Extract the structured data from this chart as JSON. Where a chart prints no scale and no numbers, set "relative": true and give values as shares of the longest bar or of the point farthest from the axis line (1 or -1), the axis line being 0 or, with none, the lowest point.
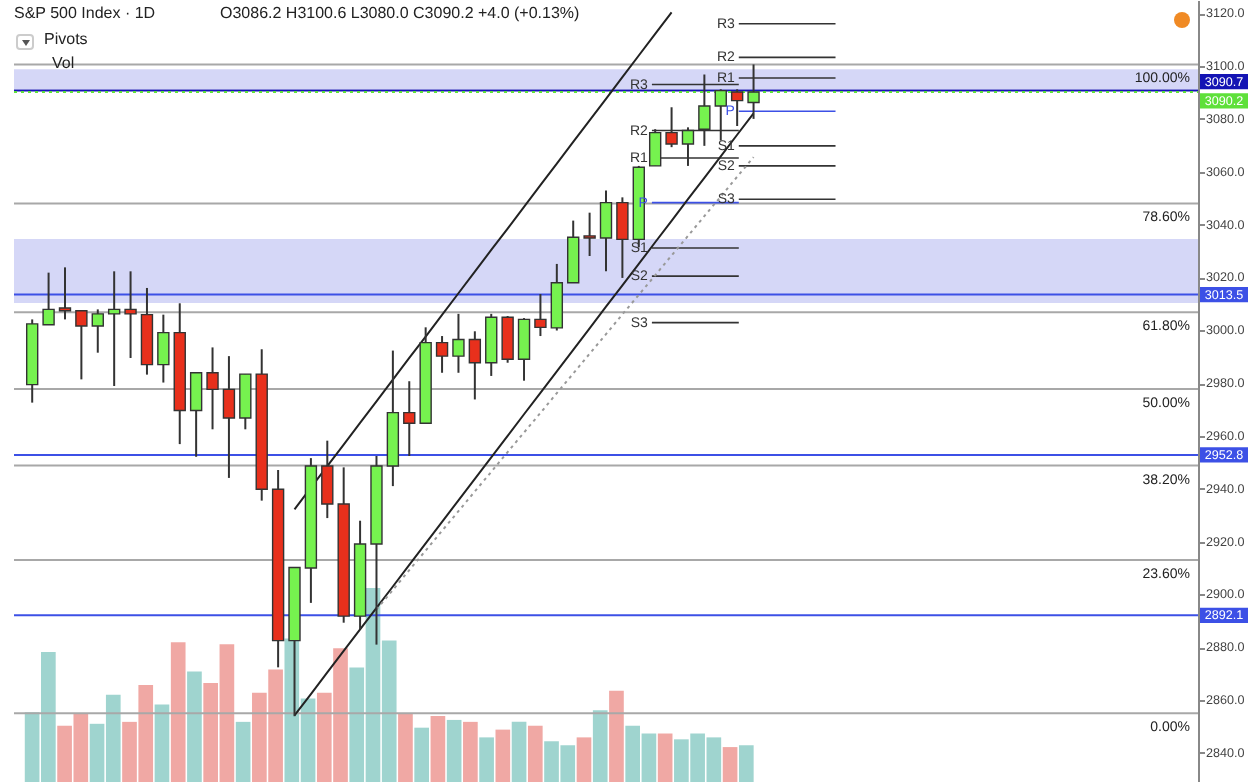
{
  "chart_data": [
    {
      "type": "candlestick",
      "title": "S&P 500 Index · 1D",
      "subtitle": "O3086.2 H3100.6 L3080.0 C3090.2 +4.0 (+0.13%)",
      "categories": [
        null,
        null,
        null,
        null,
        null,
        null,
        null,
        null,
        null,
        null,
        null,
        null,
        null,
        null,
        null,
        null,
        null,
        null,
        null,
        null,
        null,
        null,
        null,
        null,
        null,
        null,
        null,
        null,
        null,
        null,
        null,
        null,
        null,
        null,
        null,
        null,
        null,
        null,
        null,
        null,
        null,
        null,
        null,
        null,
        null,
        null,
        null,
        null,
        null,
        null,
        null,
        null,
        null,
        null,
        null,
        null,
        null,
        null,
        null,
        null,
        null,
        null,
        null,
        null,
        null,
        null,
        null,
        null,
        null,
        null,
        null
      ],
      "ohlc": [
        [
          2979.4,
          3004.1,
          2972.6,
          3002.4
        ],
        [
          3002.1,
          3021.8,
          3002.1,
          3007.9
        ],
        [
          3008.4,
          3023.8,
          3004.1,
          3007.4
        ],
        [
          3007.4,
          3007.4,
          2981.4,
          3001.6
        ],
        [
          3001.6,
          3007.9,
          2991.5,
          3006.2
        ],
        [
          3006.2,
          3022.3,
          2978.9,
          3007.9
        ],
        [
          3007.9,
          3022.3,
          2989.5,
          3006.2
        ],
        [
          3005.9,
          3016.0,
          2983.2,
          2987.0
        ],
        [
          2987.0,
          3005.9,
          2980.2,
          2999.1
        ],
        [
          2999.1,
          3010.2,
          2956.9,
          2969.6
        ],
        [
          2969.6,
          2983.9,
          2952.1,
          2983.9
        ],
        [
          2983.9,
          2993.5,
          2962.5,
          2977.6
        ],
        [
          2977.6,
          2990.2,
          2944.1,
          2966.8
        ],
        [
          2966.8,
          2983.4,
          2962.5,
          2983.4
        ],
        [
          2983.4,
          2992.8,
          2935.5,
          2939.8
        ],
        [
          2939.8,
          2947.1,
          2872.4,
          2882.5
        ],
        [
          2882.5,
          2910.2,
          2853.9,
          2910.2
        ],
        [
          2910.0,
          2951.6,
          2896.8,
          2948.6
        ],
        [
          2948.6,
          2958.2,
          2928.9,
          2934.2
        ],
        [
          2934.2,
          2948.1,
          2889.3,
          2891.8
        ],
        [
          2891.8,
          2927.9,
          2886.8,
          2919.1
        ],
        [
          2919.1,
          2952.4,
          2881.0,
          2948.6
        ],
        [
          2948.6,
          2992.3,
          2941.0,
          2968.8
        ],
        [
          2968.8,
          2980.7,
          2952.4,
          2964.8
        ],
        [
          2964.8,
          3001.1,
          2964.8,
          2995.3
        ],
        [
          2995.3,
          2997.8,
          2983.9,
          2990.2
        ],
        [
          2990.2,
          3006.2,
          2983.9,
          2996.5
        ],
        [
          2996.5,
          2999.6,
          2973.8,
          2987.7
        ],
        [
          2987.7,
          3006.2,
          2982.7,
          3004.9
        ],
        [
          3004.9,
          3005.4,
          2987.7,
          2989.0
        ],
        [
          2989.0,
          3004.6,
          2980.9,
          3004.1
        ],
        [
          3004.1,
          3013.7,
          2997.8,
          3001.1
        ],
        [
          3000.9,
          3025.1,
          2999.9,
          3018.0
        ],
        [
          3018.0,
          3041.5,
          3018.0,
          3035.2
        ],
        [
          3035.7,
          3044.5,
          3028.1,
          3034.9
        ],
        [
          3034.9,
          3052.9,
          3022.3,
          3048.3
        ],
        [
          3048.3,
          3050.3,
          3019.8,
          3034.4
        ],
        [
          3034.4,
          3062.2,
          3031.4,
          3061.7
        ],
        [
          3062.2,
          3076.1,
          3062.2,
          3074.8
        ],
        [
          3074.8,
          3084.4,
          3069.3,
          3070.5
        ],
        [
          3070.5,
          3076.8,
          3062.2,
          3075.6
        ],
        [
          3076.1,
          3096.8,
          3069.8,
          3084.9
        ],
        [
          3084.9,
          3091.2,
          3071.8,
          3090.7
        ],
        [
          3090.2,
          3091.2,
          3077.3,
          3086.9
        ],
        [
          3086.2,
          3100.6,
          3080.0,
          3090.2
        ],
        null,
        null,
        null,
        null,
        null,
        null,
        null,
        null,
        null,
        null,
        null,
        null,
        null,
        null,
        null,
        null,
        null,
        null,
        null,
        null,
        null,
        null,
        null,
        null,
        null,
        null
      ],
      "colors": [
        "#76f24f",
        "#76f24f",
        "#e8301c",
        "#e8301c",
        "#76f24f",
        "#76f24f",
        "#e8301c",
        "#e8301c",
        "#76f24f",
        "#e8301c",
        "#76f24f",
        "#e8301c",
        "#e8301c",
        "#76f24f",
        "#e8301c",
        "#e8301c",
        "#76f24f",
        "#76f24f",
        "#e8301c",
        "#e8301c",
        "#76f24f",
        "#76f24f",
        "#76f24f",
        "#e8301c",
        "#76f24f",
        "#e8301c",
        "#76f24f",
        "#e8301c",
        "#76f24f",
        "#e8301c",
        "#76f24f",
        "#e8301c",
        "#76f24f",
        "#76f24f",
        "#e8301c",
        "#76f24f",
        "#e8301c",
        "#76f24f",
        "#76f24f",
        "#e8301c",
        "#76f24f",
        "#76f24f",
        "#76f24f",
        "#e8301c",
        "#76f24f",
        null,
        null,
        null,
        null,
        null,
        null,
        null,
        null,
        null,
        null,
        null,
        null,
        null,
        null,
        null,
        null,
        null,
        null,
        null,
        null,
        null,
        null,
        null,
        null,
        null,
        null
      ],
      "series": [
        {
          "type": "line",
          "color": "#222222",
          "line_style": "solid",
          "values": [
            null,
            null,
            null,
            null,
            null,
            null,
            null,
            null,
            null,
            null,
            null,
            null,
            null,
            null,
            null,
            null,
            2932.2,
            2940.4,
            2948.6,
            2956.7,
            2964.9,
            2973.1,
            2981.3,
            2989.5,
            2997.6,
            3005.8,
            3014.0,
            3022.2,
            3030.4,
            3038.5,
            3046.7,
            3054.9,
            3063.1,
            3071.3,
            3079.4,
            3087.6,
            3095.8,
            3104.0,
            3112.2,
            3120.3,
            null,
            null,
            null,
            null,
            null,
            null,
            null,
            null,
            null,
            null,
            null,
            null,
            null,
            null,
            null,
            null,
            null,
            null,
            null,
            null,
            null,
            null,
            null,
            null,
            null,
            null,
            null,
            null,
            null,
            null,
            null
          ]
        },
        {
          "type": "line",
          "color": "#222222",
          "line_style": "solid",
          "values": [
            null,
            null,
            null,
            null,
            null,
            null,
            null,
            null,
            null,
            null,
            null,
            null,
            null,
            null,
            null,
            null,
            2854.2,
            2862.3,
            2870.5,
            2878.6,
            2886.8,
            2894.9,
            2903.0,
            2911.2,
            2919.3,
            2927.5,
            2935.6,
            2943.7,
            2951.9,
            2960.0,
            2968.2,
            2976.3,
            2984.4,
            2992.6,
            3000.7,
            3008.9,
            3017.0,
            3025.1,
            3033.3,
            3041.4,
            3049.6,
            3057.7,
            3065.8,
            3074.0,
            3082.1,
            null,
            null,
            null,
            null,
            null,
            null,
            null,
            null,
            null,
            null,
            null,
            null,
            null,
            null,
            null,
            null,
            null,
            null,
            null,
            null,
            null,
            null,
            null,
            null,
            null,
            null
          ]
        },
        {
          "type": "line",
          "color": "#999999",
          "line_style": "dotted",
          "values": [
            null,
            null,
            null,
            null,
            null,
            null,
            null,
            null,
            null,
            null,
            null,
            null,
            null,
            null,
            null,
            null,
            null,
            null,
            null,
            null,
            null,
            2894.3,
            2901.7,
            2909.2,
            2916.6,
            2924.1,
            2931.5,
            2939.0,
            2946.4,
            2953.9,
            2961.3,
            2968.7,
            2976.2,
            2983.6,
            2991.1,
            2998.5,
            3006.0,
            3013.4,
            3020.8,
            3028.3,
            3035.7,
            3043.2,
            3050.6,
            3058.1,
            3065.5,
            null,
            null,
            null,
            null,
            null,
            null,
            null,
            null,
            null,
            null,
            null,
            null,
            null,
            null,
            null,
            null,
            null,
            null,
            null,
            null,
            null,
            null,
            null,
            null,
            null,
            null
          ]
        }
      ],
      "ylim": [
        2829,
        3125
      ],
      "yticks": [
        {
          "value": 2840,
          "label": "2840.0"
        },
        {
          "value": 2860,
          "label": "2860.0"
        },
        {
          "value": 2880,
          "label": "2880.0"
        },
        {
          "value": 2900,
          "label": "2900.0"
        },
        {
          "value": 2920,
          "label": "2920.0"
        },
        {
          "value": 2940,
          "label": "2940.0"
        },
        {
          "value": 2960,
          "label": "2960.0"
        },
        {
          "value": 2980,
          "label": "2980.0"
        },
        {
          "value": 3000,
          "label": "3000.0"
        },
        {
          "value": 3020,
          "label": "3020.0"
        },
        {
          "value": 3040,
          "label": "3040.0"
        },
        {
          "value": 3060,
          "label": "3060.0"
        },
        {
          "value": 3080,
          "label": "3080.0"
        },
        {
          "value": 3100,
          "label": "3100.0"
        },
        {
          "value": 3120,
          "label": "3120.0"
        }
      ],
      "tick_labels": "y",
      "bands": [
        {
          "axis": "y",
          "from": 3010.3,
          "to": 3034.5,
          "color": "#d3d5f7"
        },
        {
          "axis": "y",
          "from": 3091.2,
          "to": 3098.8,
          "color": "#d3d5f7"
        }
      ],
      "ref_lines": [
        {
          "axis": "y",
          "value": 3100.6,
          "color": "#a8a8a8"
        },
        {
          "axis": "y",
          "value": 3048.0,
          "color": "#a8a8a8"
        },
        {
          "axis": "y",
          "value": 3006.8,
          "color": "#a8a8a8"
        },
        {
          "axis": "y",
          "value": 2977.8,
          "color": "#a8a8a8"
        },
        {
          "axis": "y",
          "value": 2948.8,
          "color": "#a8a8a8"
        },
        {
          "axis": "y",
          "value": 2913.0,
          "color": "#a8a8a8"
        },
        {
          "axis": "y",
          "value": 2855.0,
          "color": "#a8a8a8"
        },
        {
          "axis": "y",
          "value": 3090.7,
          "label": "3090.7",
          "color": "#1414b4"
        },
        {
          "axis": "y",
          "value": 3013.5,
          "label": "3013.5",
          "color": "#3c50e6"
        },
        {
          "axis": "y",
          "value": 2952.8,
          "label": "2952.8",
          "color": "#3c50e6"
        },
        {
          "axis": "y",
          "value": 2892.1,
          "label": "2892.1",
          "color": "#3c50e6"
        },
        {
          "axis": "y",
          "value": 3090.2,
          "label": "3090.2",
          "color": "#5ee03a",
          "line_style": "dotted"
        },
        {
          "axis": "y",
          "value": 3093.0,
          "label": "R3",
          "color": "#333333"
        },
        {
          "axis": "y",
          "value": 3075.6,
          "label": "R2",
          "color": "#333333"
        },
        {
          "axis": "y",
          "value": 3065.2,
          "label": "R1",
          "color": "#333333"
        },
        {
          "axis": "y",
          "value": 3048.3,
          "label": "P",
          "color": "#3c50e6"
        },
        {
          "axis": "y",
          "value": 3031.1,
          "label": "S1",
          "color": "#333333"
        },
        {
          "axis": "y",
          "value": 3020.5,
          "label": "S2",
          "color": "#333333"
        },
        {
          "axis": "y",
          "value": 3002.9,
          "label": "S3",
          "color": "#333333"
        },
        {
          "axis": "y",
          "value": 3116.0,
          "label": "R3",
          "color": "#333333"
        },
        {
          "axis": "y",
          "value": 3103.3,
          "label": "R2",
          "color": "#333333"
        },
        {
          "axis": "y",
          "value": 3095.5,
          "label": "R1",
          "color": "#333333"
        },
        {
          "axis": "y",
          "value": 3082.9,
          "label": "P",
          "color": "#3c50e6"
        },
        {
          "axis": "y",
          "value": 3069.8,
          "label": "S1",
          "color": "#333333"
        },
        {
          "axis": "y",
          "value": 3062.2,
          "label": "S2",
          "color": "#333333"
        },
        {
          "axis": "y",
          "value": 3049.6,
          "label": "S3",
          "color": "#333333"
        }
      ],
      "annotations": [
        "Pivots",
        "Vol",
        {
          "text": "100.00%",
          "y": 3100.6
        },
        {
          "text": "78.60%",
          "y": 3048.0
        },
        {
          "text": "61.80%",
          "y": 3006.8
        },
        {
          "text": "50.00%",
          "y": 2977.8
        },
        {
          "text": "38.20%",
          "y": 2948.8
        },
        {
          "text": "23.60%",
          "y": 2913.0
        },
        {
          "text": "0.00%",
          "y": 2855.0
        }
      ]
    },
    {
      "type": "bar",
      "relative": true,
      "categories": [
        null,
        null,
        null,
        null,
        null,
        null,
        null,
        null,
        null,
        null,
        null,
        null,
        null,
        null,
        null,
        null,
        null,
        null,
        null,
        null,
        null,
        null,
        null,
        null,
        null,
        null,
        null,
        null,
        null,
        null,
        null,
        null,
        null,
        null,
        null,
        null,
        null,
        null,
        null,
        null,
        null,
        null,
        null,
        null,
        null
      ],
      "values": [
        0.36,
        0.67,
        0.29,
        0.35,
        0.3,
        0.45,
        0.31,
        0.5,
        0.4,
        0.72,
        0.57,
        0.51,
        0.71,
        0.31,
        0.46,
        0.58,
        0.74,
        0.43,
        0.46,
        0.69,
        0.59,
        1,
        0.73,
        0.35,
        0.28,
        0.34,
        0.32,
        0.31,
        0.23,
        0.27,
        0.31,
        0.29,
        0.21,
        0.19,
        0.23,
        0.37,
        0.47,
        0.29,
        0.25,
        0.25,
        0.22,
        0.25,
        0.23,
        0.18,
        0.19
      ],
      "colors": [
        "#9fd4cf",
        "#9fd4cf",
        "#f0a8a4",
        "#f0a8a4",
        "#9fd4cf",
        "#9fd4cf",
        "#f0a8a4",
        "#f0a8a4",
        "#9fd4cf",
        "#f0a8a4",
        "#9fd4cf",
        "#f0a8a4",
        "#f0a8a4",
        "#9fd4cf",
        "#f0a8a4",
        "#f0a8a4",
        "#9fd4cf",
        "#9fd4cf",
        "#f0a8a4",
        "#f0a8a4",
        "#9fd4cf",
        "#9fd4cf",
        "#9fd4cf",
        "#f0a8a4",
        "#9fd4cf",
        "#f0a8a4",
        "#9fd4cf",
        "#f0a8a4",
        "#9fd4cf",
        "#f0a8a4",
        "#9fd4cf",
        "#f0a8a4",
        "#9fd4cf",
        "#9fd4cf",
        "#f0a8a4",
        "#9fd4cf",
        "#f0a8a4",
        "#9fd4cf",
        "#9fd4cf",
        "#f0a8a4",
        "#9fd4cf",
        "#9fd4cf",
        "#9fd4cf",
        "#f0a8a4",
        "#9fd4cf"
      ]
    }
  ]
}
